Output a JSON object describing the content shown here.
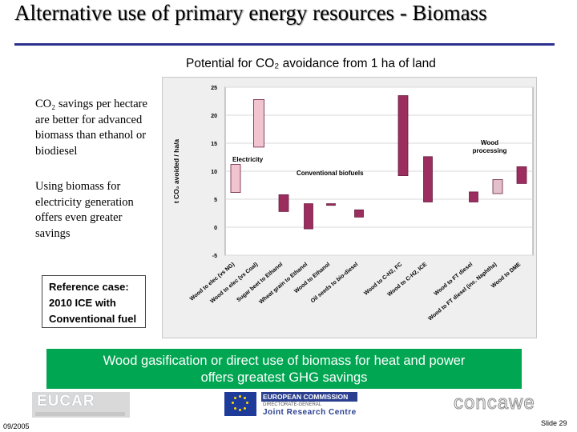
{
  "slide": {
    "title": "Alternative use of primary energy resources - Biomass",
    "chart_caption": "Potential for CO₂ avoidance from 1 ha of land",
    "bullet_1": "CO₂ savings per hectare are better for advanced biomass than ethanol or biodiesel",
    "bullet_2": "Using biomass for electricity generation offers even greater savings",
    "reference_lines": [
      "Reference case:",
      "2010 ICE with",
      "Conventional fuel"
    ],
    "conclusion_lines": [
      "Wood gasification or direct use of biomass for heat and power",
      "offers greatest GHG savings"
    ],
    "date": "09/2005",
    "slide_number": "Slide 29"
  },
  "logos": {
    "eucar": "EUCAR",
    "ec_name": "EUROPEAN COMMISSION",
    "ec_dg": "DIRECTORATE-GENERAL",
    "ec_jrc": "Joint Research Centre",
    "concawe": "concawe"
  },
  "colors": {
    "bar_biofuel": "#9b2d5f",
    "bar_electricity": "#f2c4cf",
    "bar_wood_light": "#e3c0cc",
    "green_box": "#00a651",
    "title_rule": "#2b2f8f"
  },
  "chart_data": {
    "type": "bar",
    "style": "floating range bars",
    "ylabel": "t CO₂ avoided / ha/a",
    "ylim": [
      -5,
      25
    ],
    "yticks": [
      -5,
      0,
      5,
      10,
      15,
      20,
      25
    ],
    "categories": [
      "Wood to elec (vs NG)",
      "Wood to elec (vs Coal)",
      "Sugar beet to Ethanol",
      "Wheat grain to Ethanol",
      "Wood to Ethanol",
      "Oil seeds to bio-diesel",
      "Wood to C-H2, FC",
      "Wood to C-H2, ICE",
      "Wood to FT diesel",
      "Wood to FT diesel (inc. Naphtha)",
      "Wood to DME"
    ],
    "ranges": [
      [
        6.2,
        11.2
      ],
      [
        14.3,
        22.8
      ],
      [
        2.8,
        5.8
      ],
      [
        -0.3,
        4.2
      ],
      [
        3.9,
        4.2
      ],
      [
        1.8,
        3.1
      ],
      [
        9.2,
        23.5
      ],
      [
        4.5,
        12.6
      ],
      [
        4.5,
        6.3
      ],
      [
        6.0,
        8.5
      ],
      [
        7.8,
        10.8
      ]
    ],
    "bar_color_keys": [
      "bar_electricity",
      "bar_electricity",
      "bar_biofuel",
      "bar_biofuel",
      "bar_biofuel",
      "bar_biofuel",
      "bar_biofuel",
      "bar_biofuel",
      "bar_biofuel",
      "bar_wood_light",
      "bar_biofuel"
    ],
    "annotations": [
      "Electricity",
      "Conventional biofuels",
      "Wood processing"
    ]
  }
}
